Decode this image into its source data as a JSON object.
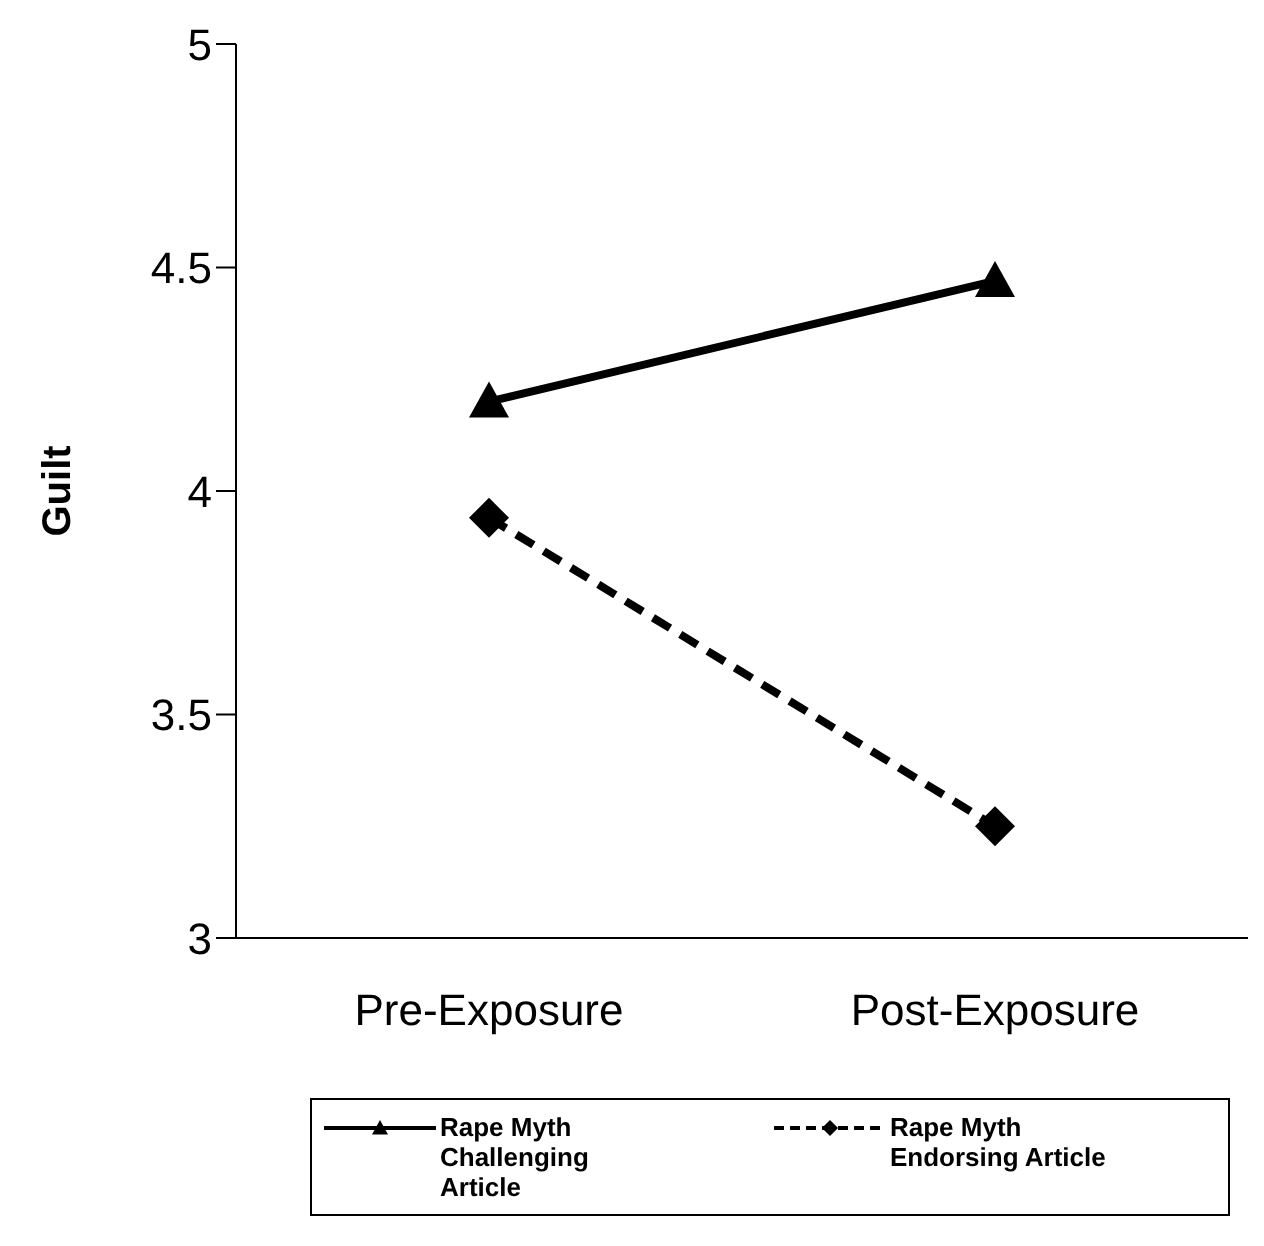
{
  "chart_data": {
    "type": "line",
    "ylabel": "Guilt",
    "categories": [
      "Pre-Exposure",
      "Post-Exposure"
    ],
    "series": [
      {
        "name": "Rape Myth Challenging Article",
        "color": "#000000",
        "values": [
          4.2,
          4.47
        ],
        "marker": "triangle",
        "line_style": "solid"
      },
      {
        "name": "Rape Myth Endorsing Article",
        "color": "#000000",
        "values": [
          3.94,
          3.25
        ],
        "marker": "diamond",
        "line_style": "dashed"
      }
    ],
    "ylim": [
      3,
      5
    ],
    "yticks": [
      3,
      3.5,
      4,
      4.5,
      5
    ],
    "grid": false,
    "legend": "bottom"
  }
}
